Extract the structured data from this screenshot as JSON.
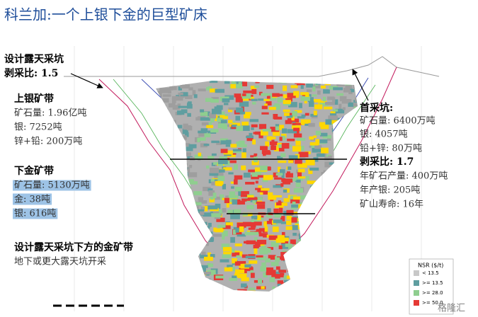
{
  "title": "科兰加:一个上银下金的巨型矿床",
  "design_pit": {
    "name": "设计露天采坑",
    "strip_ratio": "剥采比: 1.5"
  },
  "upper_zone": {
    "heading": "上银矿带",
    "lines": [
      "矿石量: 1.96亿吨",
      "银: 7252吨",
      "锌+铅: 200万吨"
    ]
  },
  "lower_zone": {
    "heading": "下金矿带",
    "lines": [
      "矿石量: 5130万吨",
      "金: 38吨",
      "银: 616吨"
    ]
  },
  "below_pit": {
    "heading": "设计露天采坑下方的金矿带",
    "text": "地下或更大露天坑开采"
  },
  "starter_pit": {
    "heading": "首采坑:",
    "lines": [
      "矿石量: 6400万吨",
      "银: 4057吨",
      "铅+锌: 80万吨"
    ],
    "strip_ratio": "剥采比: 1.7",
    "more_lines": [
      "年矿石产量: 400万吨",
      "年产银: 205吨",
      "矿山寿命: 16年"
    ]
  },
  "legend": {
    "title": "NSR ($/t)",
    "items": [
      "< 13.5",
      ">= 13.5",
      ">= 28.0",
      ">= 50.0"
    ]
  },
  "watermark": "格隆汇"
}
